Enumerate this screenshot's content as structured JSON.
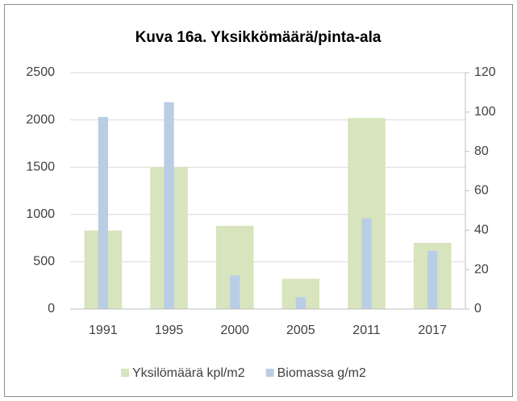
{
  "chart_data": {
    "type": "bar",
    "title": "Kuva 16a. Yksikkömäärä/pinta-ala",
    "categories": [
      "1991",
      "1995",
      "2000",
      "2005",
      "2011",
      "2017"
    ],
    "series": [
      {
        "name": "Yksilömäärä kpl/m2",
        "color": "#d7e4bd",
        "values": [
          830,
          1500,
          880,
          320,
          2020,
          700
        ]
      },
      {
        "name": "Biomassa g/m2",
        "color": "#b9cde5",
        "axis": "y2",
        "values": [
          97.5,
          105,
          17,
          6,
          46,
          29.5
        ]
      }
    ],
    "ylim": [
      0,
      2500
    ],
    "yticks": [
      0,
      500,
      1000,
      1500,
      2000,
      2500
    ],
    "y2lim": [
      0,
      120
    ],
    "y2ticks": [
      0,
      20,
      40,
      60,
      80,
      100,
      120
    ],
    "grid": true,
    "legend": "bottom"
  }
}
